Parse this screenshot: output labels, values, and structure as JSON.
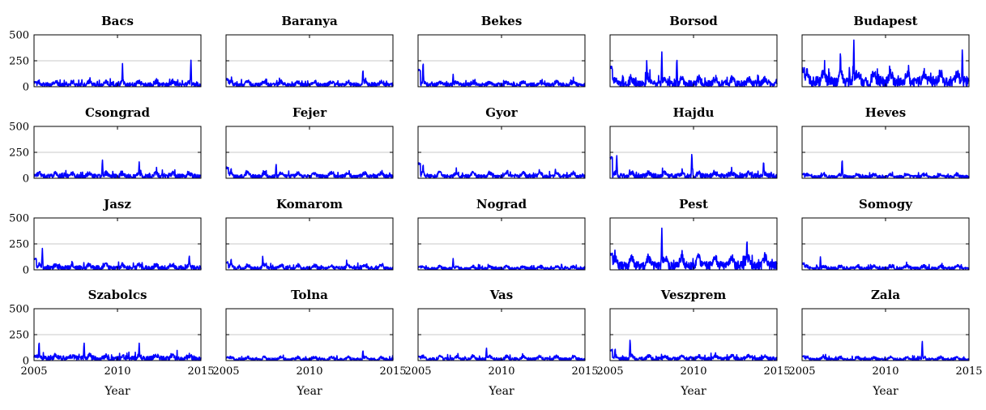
{
  "chart_data": {
    "type": "line",
    "layout": "small-multiples 4x5",
    "xlabel": "Year",
    "xlim": [
      2005,
      2015
    ],
    "ylim": [
      0,
      500
    ],
    "xticks": [
      2005,
      2010,
      2015
    ],
    "yticks": [
      0,
      250,
      500
    ],
    "grid": "horizontal",
    "series_color": "#0000ff",
    "panels": [
      {
        "name": "Bacs",
        "base": 40,
        "amp": 28,
        "noise": 22,
        "peaks": [
          [
            2010.3,
            230
          ],
          [
            2014.4,
            270
          ]
        ],
        "first": 40
      },
      {
        "name": "Baranya",
        "base": 40,
        "amp": 30,
        "noise": 20,
        "peaks": [
          [
            2013.2,
            180
          ]
        ],
        "first": 70
      },
      {
        "name": "Bekes",
        "base": 40,
        "amp": 25,
        "noise": 20,
        "peaks": [
          [
            2005.3,
            260
          ],
          [
            2007.1,
            120
          ]
        ],
        "first": 160
      },
      {
        "name": "Borsod",
        "base": 60,
        "amp": 45,
        "noise": 35,
        "peaks": [
          [
            2008.1,
            350
          ],
          [
            2007.2,
            270
          ],
          [
            2009.0,
            300
          ]
        ],
        "first": 180
      },
      {
        "name": "Budapest",
        "base": 110,
        "amp": 80,
        "noise": 50,
        "peaks": [
          [
            2008.1,
            470
          ],
          [
            2014.6,
            390
          ],
          [
            2007.3,
            370
          ]
        ],
        "first": 160
      },
      {
        "name": "Csongrad",
        "base": 40,
        "amp": 30,
        "noise": 22,
        "peaks": [
          [
            2009.1,
            190
          ],
          [
            2011.3,
            160
          ]
        ],
        "first": 30
      },
      {
        "name": "Fejer",
        "base": 40,
        "amp": 32,
        "noise": 18,
        "peaks": [
          [
            2005.3,
            110
          ],
          [
            2008.0,
            150
          ]
        ],
        "first": 100
      },
      {
        "name": "Gyor",
        "base": 40,
        "amp": 35,
        "noise": 18,
        "peaks": [
          [
            2005.3,
            150
          ]
        ],
        "first": 140
      },
      {
        "name": "Hajdu",
        "base": 45,
        "amp": 30,
        "noise": 25,
        "peaks": [
          [
            2005.4,
            240
          ],
          [
            2009.9,
            260
          ],
          [
            2014.2,
            180
          ]
        ],
        "first": 200
      },
      {
        "name": "Heves",
        "base": 30,
        "amp": 22,
        "noise": 15,
        "peaks": [
          [
            2007.4,
            200
          ]
        ],
        "first": 40
      },
      {
        "name": "Jasz",
        "base": 40,
        "amp": 30,
        "noise": 22,
        "peaks": [
          [
            2005.5,
            210
          ],
          [
            2014.3,
            150
          ]
        ],
        "first": 110
      },
      {
        "name": "Komarom",
        "base": 35,
        "amp": 28,
        "noise": 18,
        "peaks": [
          [
            2005.3,
            120
          ],
          [
            2007.2,
            140
          ]
        ],
        "first": 70
      },
      {
        "name": "Nograd",
        "base": 25,
        "amp": 20,
        "noise": 14,
        "peaks": [
          [
            2007.1,
            110
          ]
        ],
        "first": 30
      },
      {
        "name": "Pest",
        "base": 90,
        "amp": 75,
        "noise": 40,
        "peaks": [
          [
            2008.1,
            420
          ],
          [
            2013.2,
            320
          ]
        ],
        "first": 150
      },
      {
        "name": "Somogy",
        "base": 30,
        "amp": 22,
        "noise": 16,
        "peaks": [
          [
            2006.1,
            130
          ]
        ],
        "first": 60
      },
      {
        "name": "Szabolcs",
        "base": 45,
        "amp": 28,
        "noise": 25,
        "peaks": [
          [
            2005.3,
            200
          ],
          [
            2008.0,
            190
          ],
          [
            2011.3,
            170
          ]
        ],
        "first": 40
      },
      {
        "name": "Tolna",
        "base": 25,
        "amp": 20,
        "noise": 14,
        "peaks": [
          [
            2013.2,
            110
          ]
        ],
        "first": 30
      },
      {
        "name": "Vas",
        "base": 30,
        "amp": 25,
        "noise": 15,
        "peaks": [
          [
            2009.1,
            130
          ]
        ],
        "first": 40
      },
      {
        "name": "Veszprem",
        "base": 35,
        "amp": 30,
        "noise": 18,
        "peaks": [
          [
            2006.2,
            220
          ],
          [
            2005.3,
            130
          ]
        ],
        "first": 100
      },
      {
        "name": "Zala",
        "base": 25,
        "amp": 20,
        "noise": 14,
        "peaks": [
          [
            2012.2,
            210
          ]
        ],
        "first": 40
      }
    ]
  }
}
